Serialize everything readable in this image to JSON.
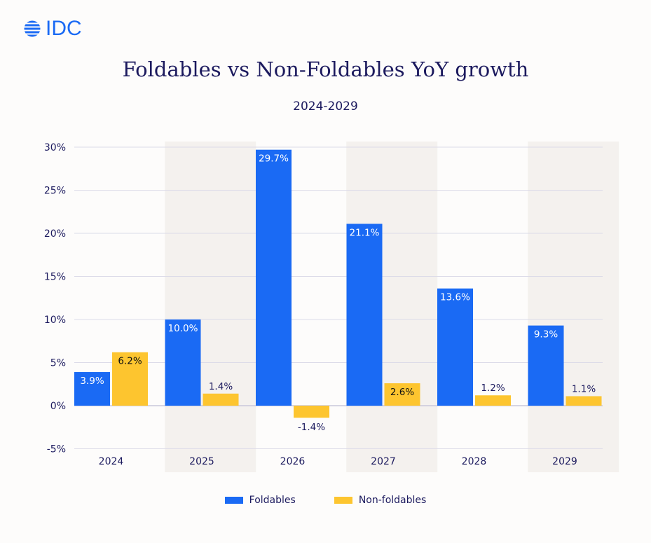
{
  "logo": {
    "text": "IDC",
    "icon": "globe-stripes-icon",
    "color": "#1a6af4"
  },
  "chart_data": {
    "type": "bar",
    "title": "Foldables vs Non-Foldables YoY growth",
    "subtitle": "2024-2029",
    "categories": [
      "2024",
      "2025",
      "2026",
      "2027",
      "2028",
      "2029"
    ],
    "series": [
      {
        "name": "Foldables",
        "color": "#1a6af4",
        "values": [
          3.9,
          10.0,
          29.7,
          21.1,
          13.6,
          9.3
        ],
        "labels": [
          "3.9%",
          "10.0%",
          "29.7%",
          "21.1%",
          "13.6%",
          "9.3%"
        ]
      },
      {
        "name": "Non-foldables",
        "color": "#fdc52f",
        "values": [
          6.2,
          1.4,
          -1.4,
          2.6,
          1.2,
          1.1
        ],
        "labels": [
          "6.2%",
          "1.4%",
          "-1.4%",
          "2.6%",
          "1.2%",
          "1.1%"
        ]
      }
    ],
    "yticks": [
      "-5%",
      "0%",
      "5%",
      "10%",
      "15%",
      "20%",
      "25%",
      "30%"
    ],
    "ylim": [
      -5,
      30
    ],
    "grid": true,
    "legend": "bottom",
    "xlabel": "",
    "ylabel": ""
  }
}
